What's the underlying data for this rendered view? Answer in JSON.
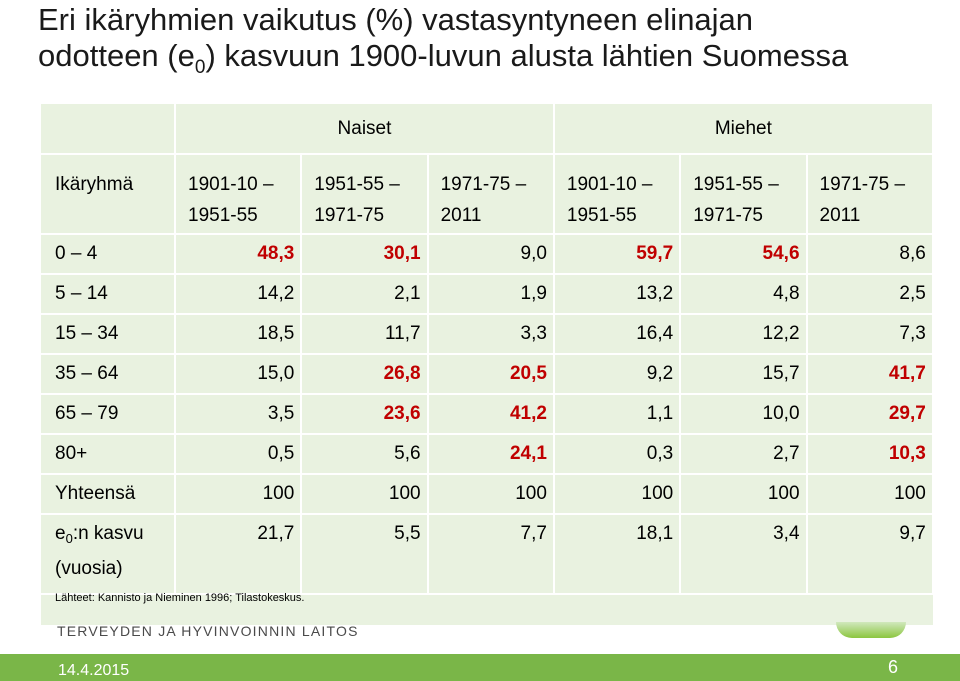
{
  "title": {
    "line1": "Eri ikäryhmien vaikutus (%) vastasyntyneen elinajan",
    "line2_pre": "odotteen (e",
    "line2_sub": "0",
    "line2_post": ") kasvuun 1900-luvun alusta lähtien Suomessa"
  },
  "table": {
    "group_headers": [
      "Naiset",
      "Miehet"
    ],
    "row_header_label": "Ikäryhmä",
    "periods": [
      "1901-10 –\n1951-55",
      "1951-55 –\n1971-75",
      "1971-75 –\n2011",
      "1901-10 –\n1951-55",
      "1951-55 –\n1971-75",
      "1971-75 –\n2011"
    ],
    "rows": [
      {
        "label": "0 – 4",
        "values": [
          "48,3",
          "30,1",
          "9,0",
          "59,7",
          "54,6",
          "8,6"
        ],
        "highlight": [
          true,
          true,
          false,
          true,
          true,
          false
        ]
      },
      {
        "label": "5 – 14",
        "values": [
          "14,2",
          "2,1",
          "1,9",
          "13,2",
          "4,8",
          "2,5"
        ],
        "highlight": [
          false,
          false,
          false,
          false,
          false,
          false
        ]
      },
      {
        "label": "15 – 34",
        "values": [
          "18,5",
          "11,7",
          "3,3",
          "16,4",
          "12,2",
          "7,3"
        ],
        "highlight": [
          false,
          false,
          false,
          false,
          false,
          false
        ]
      },
      {
        "label": "35 – 64",
        "values": [
          "15,0",
          "26,8",
          "20,5",
          "9,2",
          "15,7",
          "41,7"
        ],
        "highlight": [
          false,
          true,
          true,
          false,
          false,
          true
        ]
      },
      {
        "label": "65 – 79",
        "values": [
          "3,5",
          "23,6",
          "41,2",
          "1,1",
          "10,0",
          "29,7"
        ],
        "highlight": [
          false,
          true,
          true,
          false,
          false,
          true
        ]
      },
      {
        "label": "80+",
        "values": [
          "0,5",
          "5,6",
          "24,1",
          "0,3",
          "2,7",
          "10,3"
        ],
        "highlight": [
          false,
          false,
          true,
          false,
          false,
          true
        ]
      },
      {
        "label": "Yhteensä",
        "values": [
          "100",
          "100",
          "100",
          "100",
          "100",
          "100"
        ],
        "highlight": [
          false,
          false,
          false,
          false,
          false,
          false
        ]
      }
    ],
    "last_row": {
      "label_pre": "e",
      "label_sub": "0",
      "label_post": ":n kasvu",
      "label_line2": "(vuosia)",
      "values": [
        "21,7",
        "5,5",
        "7,7",
        "18,1",
        "3,4",
        "9,7"
      ]
    }
  },
  "source": "Lähteet: Kannisto ja Nieminen 1996; Tilastokeskus.",
  "logo_text": "TERVEYDEN JA HYVINVOINNIN LAITOS",
  "footer": {
    "date": "14.4.2015",
    "page": "6"
  },
  "colors": {
    "highlight": "#c00000",
    "table_bg": "#e9f2e0",
    "footer_bg": "#7ab648"
  }
}
